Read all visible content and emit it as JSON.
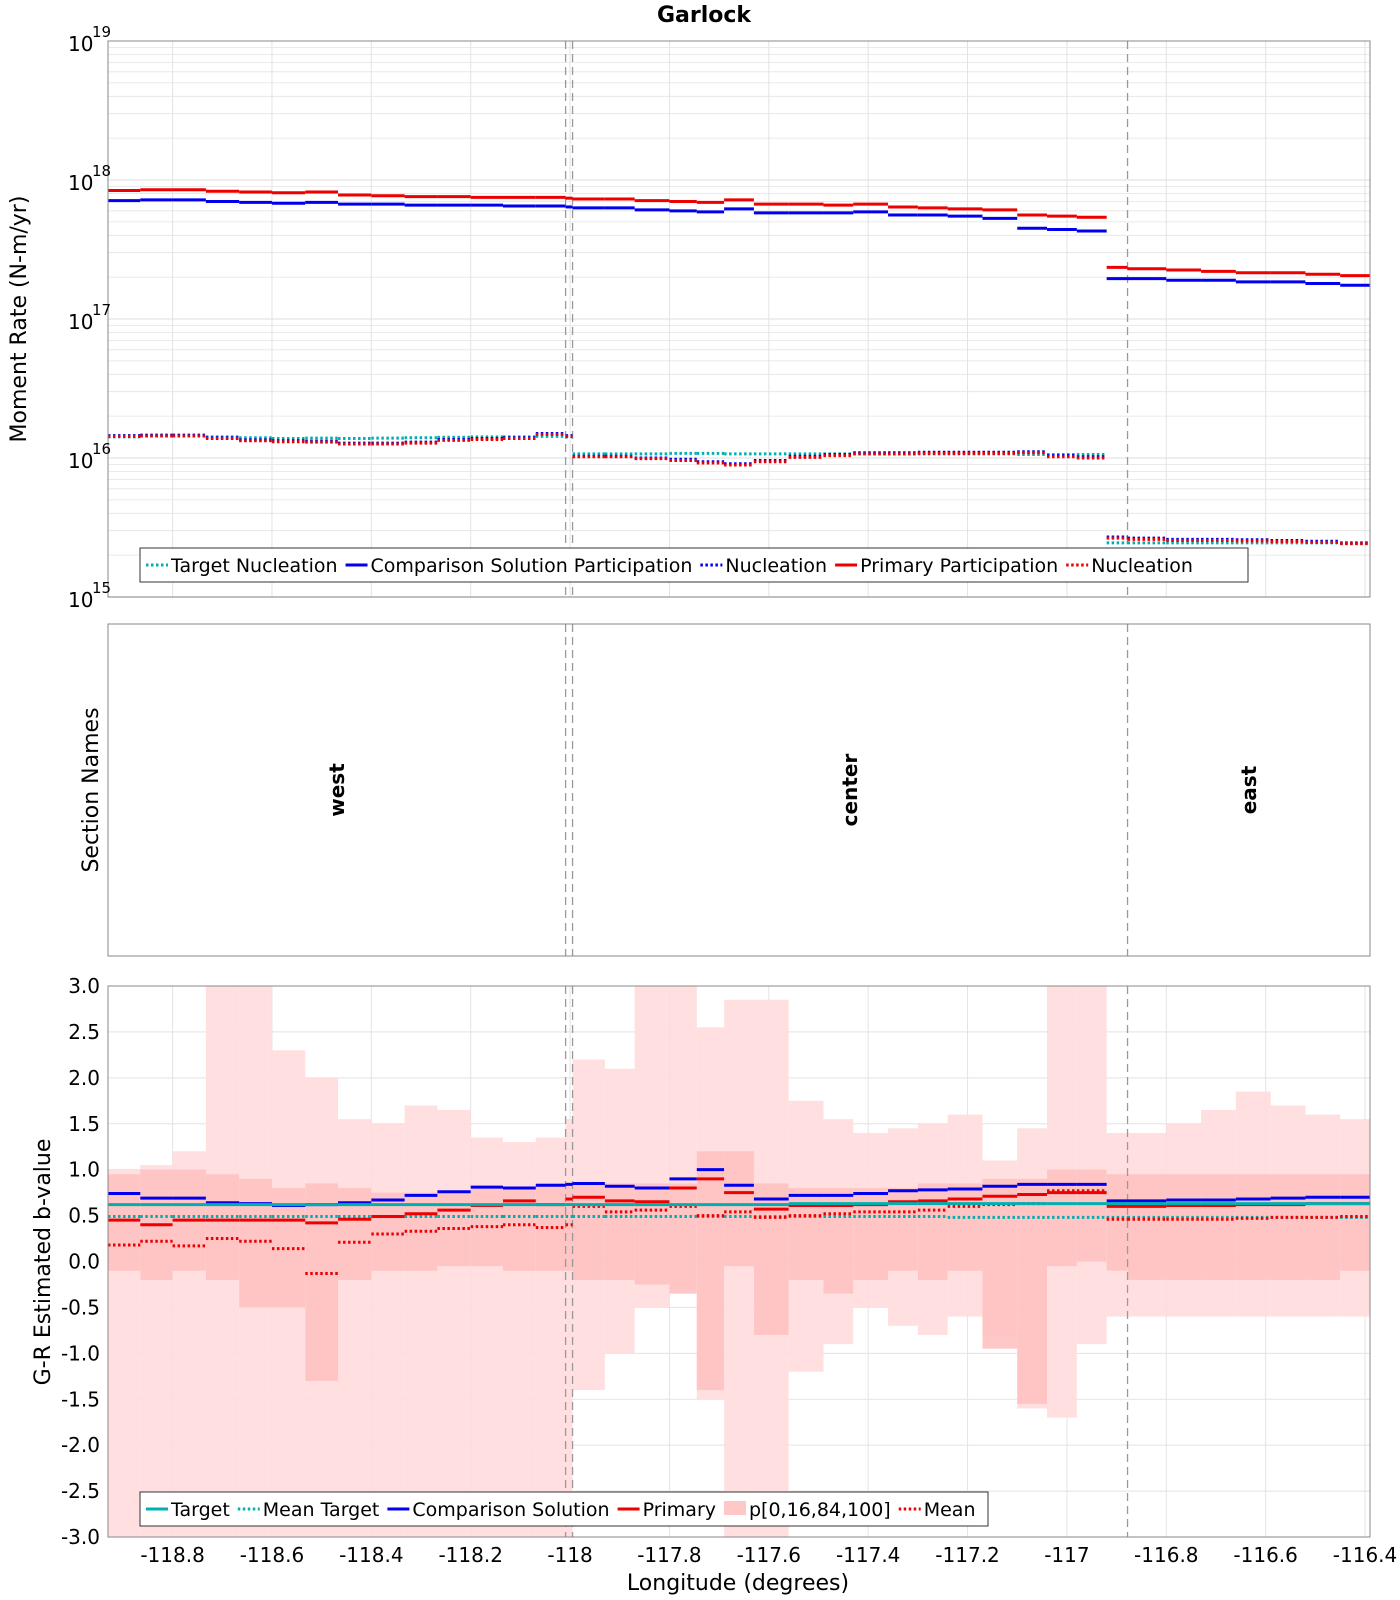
{
  "title": "Garlock",
  "xlabel": "Longitude (degrees)",
  "x_ticks": [
    "-118.8",
    "-118.6",
    "-118.4",
    "-118.2",
    "-118",
    "-117.8",
    "-117.6",
    "-117.4",
    "-117.2",
    "-117",
    "-116.8",
    "-116.6",
    "-116.4"
  ],
  "colors": {
    "target": "#00b0b0",
    "comparison": "#0000ee",
    "primary": "#ee0000",
    "band_outer": "#ffdcdc",
    "band_inner": "#ffc2c2",
    "grid": "#e3e3e3",
    "boundary": "#999999"
  },
  "chart_data": [
    {
      "type": "line",
      "ylabel": "Moment Rate (N-m/yr)",
      "yscale": "log",
      "ylim": [
        1000000000000000.0,
        1e+19
      ],
      "xlim": [
        -118.93,
        -116.39
      ],
      "y_tick_base": "10",
      "y_tick_exponents": [
        "15",
        "16",
        "17",
        "18",
        "19"
      ],
      "section_boundaries": [
        -118.009,
        -117.995,
        -116.878
      ],
      "grid": true,
      "legend_position": "bottom-left",
      "legend": [
        {
          "label": "Target Nucleation",
          "color": "#00b0b0",
          "style": "dotted"
        },
        {
          "label": "Comparison Solution Participation",
          "color": "#0000ee",
          "style": "solid"
        },
        {
          "label": "Nucleation",
          "color": "#0000ee",
          "style": "dotted"
        },
        {
          "label": "Primary Participation",
          "color": "#ee0000",
          "style": "solid"
        },
        {
          "label": "Nucleation",
          "color": "#ee0000",
          "style": "dotted"
        }
      ],
      "x_edges": [
        -118.93,
        -118.865,
        -118.8,
        -118.733,
        -118.666,
        -118.6,
        -118.533,
        -118.467,
        -118.4,
        -118.333,
        -118.267,
        -118.2,
        -118.135,
        -118.069,
        -118.009,
        -117.995,
        -117.93,
        -117.87,
        -117.8,
        -117.745,
        -117.69,
        -117.63,
        -117.56,
        -117.49,
        -117.43,
        -117.36,
        -117.3,
        -117.24,
        -117.17,
        -117.1,
        -117.04,
        -116.98,
        -116.92,
        -116.878,
        -116.8,
        -116.73,
        -116.66,
        -116.59,
        -116.52,
        -116.45,
        -116.39
      ],
      "series": [
        {
          "name": "Primary Participation",
          "values": [
            8.4e+17,
            8.5e+17,
            8.5e+17,
            8.3e+17,
            8.2e+17,
            8.1e+17,
            8.2e+17,
            7.8e+17,
            7.7e+17,
            7.6e+17,
            7.6e+17,
            7.5e+17,
            7.5e+17,
            7.5e+17,
            7.4e+17,
            7.3e+17,
            7.3e+17,
            7.1e+17,
            7e+17,
            6.9e+17,
            7.2e+17,
            6.7e+17,
            6.7e+17,
            6.6e+17,
            6.7e+17,
            6.4e+17,
            6.3e+17,
            6.2e+17,
            6.1e+17,
            5.6e+17,
            5.5e+17,
            5.4e+17,
            2.35e+17,
            2.3e+17,
            2.25e+17,
            2.2e+17,
            2.15e+17,
            2.15e+17,
            2.1e+17,
            2.05e+17
          ]
        },
        {
          "name": "Comparison Solution Participation",
          "values": [
            7.1e+17,
            7.2e+17,
            7.2e+17,
            7e+17,
            6.9e+17,
            6.8e+17,
            6.9e+17,
            6.7e+17,
            6.7e+17,
            6.6e+17,
            6.6e+17,
            6.6e+17,
            6.5e+17,
            6.5e+17,
            6.4e+17,
            6.3e+17,
            6.3e+17,
            6.1e+17,
            6e+17,
            5.9e+17,
            6.2e+17,
            5.8e+17,
            5.8e+17,
            5.8e+17,
            5.9e+17,
            5.6e+17,
            5.6e+17,
            5.5e+17,
            5.3e+17,
            4.5e+17,
            4.4e+17,
            4.3e+17,
            1.95e+17,
            1.95e+17,
            1.9e+17,
            1.9e+17,
            1.85e+17,
            1.85e+17,
            1.8e+17,
            1.75e+17
          ]
        },
        {
          "name": "Target Nucleation",
          "values": [
            1.42e+16,
            1.44e+16,
            1.44e+16,
            1.42e+16,
            1.4e+16,
            1.38e+16,
            1.39e+16,
            1.38e+16,
            1.39e+16,
            1.4e+16,
            1.41e+16,
            1.42e+16,
            1.42e+16,
            1.43e+16,
            1.42e+16,
            1.07e+16,
            1.07e+16,
            1.07e+16,
            1.08e+16,
            1.08e+16,
            1.07e+16,
            1.07e+16,
            1.07e+16,
            1.07e+16,
            1.07e+16,
            1.07e+16,
            1.07e+16,
            1.07e+16,
            1.07e+16,
            1.06e+16,
            1.06e+16,
            1.06e+16,
            2450000000000000.0,
            2450000000000000.0,
            2450000000000000.0,
            2450000000000000.0,
            2450000000000000.0,
            2450000000000000.0,
            2450000000000000.0,
            2420000000000000.0
          ]
        },
        {
          "name": "Nucleation",
          "values": [
            1.45e+16,
            1.46e+16,
            1.46e+16,
            1.4e+16,
            1.35e+16,
            1.33e+16,
            1.32e+16,
            1.28e+16,
            1.28e+16,
            1.3e+16,
            1.36e+16,
            1.38e+16,
            1.4e+16,
            1.5e+16,
            1.45e+16,
            1.03e+16,
            1.03e+16,
            1e+16,
            9800000000000000.0,
            9400000000000000.0,
            9100000000000000.0,
            9600000000000000.0,
            1.03e+16,
            1.06e+16,
            1.09e+16,
            1.09e+16,
            1.1e+16,
            1.1e+16,
            1.1e+16,
            1.11e+16,
            1.04e+16,
            1.02e+16,
            2700000000000000.0,
            2650000000000000.0,
            2600000000000000.0,
            2600000000000000.0,
            2580000000000000.0,
            2550000000000000.0,
            2520000000000000.0,
            2450000000000000.0
          ]
        },
        {
          "name": "Nucleation",
          "values": [
            1.43e+16,
            1.44e+16,
            1.44e+16,
            1.38e+16,
            1.33e+16,
            1.31e+16,
            1.3e+16,
            1.26e+16,
            1.26e+16,
            1.28e+16,
            1.34e+16,
            1.36e+16,
            1.38e+16,
            1.48e+16,
            1.43e+16,
            1.02e+16,
            1.02e+16,
            9900000000000000.0,
            9600000000000000.0,
            9200000000000000.0,
            8900000000000000.0,
            9400000000000000.0,
            1.01e+16,
            1.04e+16,
            1.07e+16,
            1.07e+16,
            1.08e+16,
            1.08e+16,
            1.08e+16,
            1.09e+16,
            1.02e+16,
            1e+16,
            2650000000000000.0,
            2600000000000000.0,
            2550000000000000.0,
            2550000000000000.0,
            2530000000000000.0,
            2500000000000000.0,
            2470000000000000.0,
            2420000000000000.0
          ]
        }
      ]
    },
    {
      "type": "table",
      "ylabel": "Section Names",
      "sections": [
        "west",
        "center",
        "east"
      ],
      "section_boundaries": [
        -118.009,
        -117.995,
        -116.878
      ]
    },
    {
      "type": "line",
      "ylabel": "G-R Estimated b-value",
      "ylim": [
        -3.0,
        3.0
      ],
      "xlim": [
        -118.93,
        -116.39
      ],
      "y_ticks": [
        "3.0",
        "2.5",
        "2.0",
        "1.5",
        "1.0",
        "0.5",
        "0.0",
        "-0.5",
        "-1.0",
        "-1.5",
        "-2.0",
        "-2.5",
        "-3.0"
      ],
      "section_boundaries": [
        -118.009,
        -117.995,
        -116.878
      ],
      "grid": true,
      "legend_position": "bottom-left",
      "legend": [
        {
          "label": "Target",
          "color": "#00b0b0",
          "style": "solid"
        },
        {
          "label": "Mean Target",
          "color": "#00b0b0",
          "style": "dotted"
        },
        {
          "label": "Comparison Solution",
          "color": "#0000ee",
          "style": "solid"
        },
        {
          "label": "Primary",
          "color": "#ee0000",
          "style": "solid"
        },
        {
          "label": "p[0,16,84,100]",
          "color": "#ffc8c8",
          "style": "fill"
        },
        {
          "label": "Mean",
          "color": "#ee0000",
          "style": "dotted"
        }
      ],
      "x_edges": [
        -118.93,
        -118.865,
        -118.8,
        -118.733,
        -118.666,
        -118.6,
        -118.533,
        -118.467,
        -118.4,
        -118.333,
        -118.267,
        -118.2,
        -118.135,
        -118.069,
        -118.009,
        -117.995,
        -117.93,
        -117.87,
        -117.8,
        -117.745,
        -117.69,
        -117.63,
        -117.56,
        -117.49,
        -117.43,
        -117.36,
        -117.3,
        -117.24,
        -117.17,
        -117.1,
        -117.04,
        -116.98,
        -116.92,
        -116.878,
        -116.8,
        -116.73,
        -116.66,
        -116.59,
        -116.52,
        -116.45,
        -116.39
      ],
      "p0": [
        -3.0,
        -3.0,
        -3.0,
        -3.0,
        -3.0,
        -3.0,
        -3.0,
        -3.0,
        -3.0,
        -3.0,
        -3.0,
        -3.0,
        -3.0,
        -3.0,
        -3.0,
        -1.4,
        -1.0,
        -0.5,
        -0.3,
        -1.5,
        -3.0,
        -3.0,
        -1.2,
        -0.9,
        -0.5,
        -0.7,
        -0.8,
        -0.6,
        -0.8,
        -1.6,
        -1.7,
        -0.9,
        -0.6,
        -0.6,
        -0.6,
        -0.6,
        -0.6,
        -0.6,
        -0.6,
        -0.6
      ],
      "p16": [
        -0.1,
        -0.2,
        -0.1,
        -0.2,
        -0.5,
        -0.5,
        -1.3,
        -0.2,
        -0.1,
        -0.1,
        -0.05,
        -0.05,
        -0.1,
        -0.1,
        -0.1,
        -0.2,
        -0.2,
        -0.25,
        -0.35,
        -1.4,
        -0.05,
        -0.8,
        -0.2,
        -0.35,
        -0.2,
        -0.1,
        -0.2,
        -0.1,
        -0.95,
        -1.55,
        -0.05,
        0.0,
        -0.1,
        -0.2,
        -0.2,
        -0.2,
        -0.2,
        -0.2,
        -0.2,
        -0.1
      ],
      "p84": [
        0.95,
        1.0,
        1.0,
        0.95,
        0.9,
        0.8,
        0.85,
        0.8,
        0.75,
        0.75,
        0.75,
        0.8,
        0.8,
        0.85,
        0.85,
        0.85,
        0.85,
        0.85,
        0.85,
        1.2,
        1.2,
        0.85,
        0.8,
        0.8,
        0.8,
        0.8,
        0.85,
        0.85,
        0.9,
        0.9,
        1.0,
        1.0,
        0.95,
        0.95,
        0.95,
        0.95,
        0.95,
        0.95,
        0.95,
        0.95
      ],
      "p100": [
        1.0,
        1.05,
        1.2,
        3.0,
        3.0,
        2.3,
        2.0,
        1.55,
        1.5,
        1.7,
        1.65,
        1.35,
        1.3,
        1.35,
        1.55,
        2.2,
        2.1,
        3.0,
        3.0,
        2.55,
        2.85,
        2.85,
        1.75,
        1.55,
        1.4,
        1.45,
        1.5,
        1.6,
        1.1,
        1.45,
        3.0,
        3.0,
        1.4,
        1.4,
        1.5,
        1.65,
        1.85,
        1.7,
        1.6,
        1.55
      ],
      "series": [
        {
          "name": "Target",
          "values": [
            0.62,
            0.62,
            0.62,
            0.62,
            0.62,
            0.62,
            0.62,
            0.62,
            0.62,
            0.62,
            0.62,
            0.62,
            0.62,
            0.62,
            0.62,
            0.62,
            0.62,
            0.62,
            0.62,
            0.62,
            0.62,
            0.62,
            0.63,
            0.63,
            0.63,
            0.63,
            0.63,
            0.63,
            0.63,
            0.63,
            0.63,
            0.63,
            0.63,
            0.63,
            0.63,
            0.63,
            0.63,
            0.63,
            0.63,
            0.63
          ]
        },
        {
          "name": "Mean Target",
          "values": [
            0.49,
            0.49,
            0.49,
            0.49,
            0.49,
            0.49,
            0.49,
            0.49,
            0.49,
            0.49,
            0.49,
            0.49,
            0.49,
            0.49,
            0.49,
            0.49,
            0.49,
            0.49,
            0.49,
            0.49,
            0.49,
            0.49,
            0.49,
            0.49,
            0.49,
            0.49,
            0.49,
            0.48,
            0.48,
            0.48,
            0.48,
            0.48,
            0.48,
            0.48,
            0.48,
            0.48,
            0.48,
            0.48,
            0.48,
            0.48
          ]
        },
        {
          "name": "Comparison Solution",
          "values": [
            0.74,
            0.69,
            0.69,
            0.64,
            0.63,
            0.61,
            0.62,
            0.64,
            0.67,
            0.72,
            0.76,
            0.81,
            0.8,
            0.83,
            0.84,
            0.85,
            0.82,
            0.8,
            0.9,
            1.0,
            0.83,
            0.68,
            0.72,
            0.72,
            0.74,
            0.77,
            0.78,
            0.79,
            0.82,
            0.84,
            0.84,
            0.84,
            0.66,
            0.66,
            0.67,
            0.67,
            0.68,
            0.69,
            0.7,
            0.7
          ]
        },
        {
          "name": "Primary",
          "values": [
            0.45,
            0.4,
            0.45,
            0.45,
            0.45,
            0.45,
            0.42,
            0.46,
            0.49,
            0.52,
            0.56,
            0.61,
            0.66,
            0.62,
            0.68,
            0.7,
            0.66,
            0.65,
            0.8,
            0.9,
            0.75,
            0.57,
            0.61,
            0.61,
            0.62,
            0.65,
            0.66,
            0.68,
            0.71,
            0.73,
            0.75,
            0.75,
            0.6,
            0.6,
            0.61,
            0.61,
            0.62,
            0.62,
            0.63,
            0.63
          ]
        },
        {
          "name": "Mean",
          "values": [
            0.18,
            0.22,
            0.17,
            0.25,
            0.22,
            0.14,
            -0.13,
            0.21,
            0.3,
            0.33,
            0.36,
            0.38,
            0.4,
            0.37,
            0.4,
            0.6,
            0.54,
            0.56,
            0.6,
            0.5,
            0.54,
            0.48,
            0.5,
            0.52,
            0.54,
            0.54,
            0.56,
            0.6,
            0.62,
            0.63,
            0.77,
            0.77,
            0.46,
            0.46,
            0.46,
            0.46,
            0.47,
            0.48,
            0.48,
            0.49
          ]
        }
      ]
    }
  ]
}
